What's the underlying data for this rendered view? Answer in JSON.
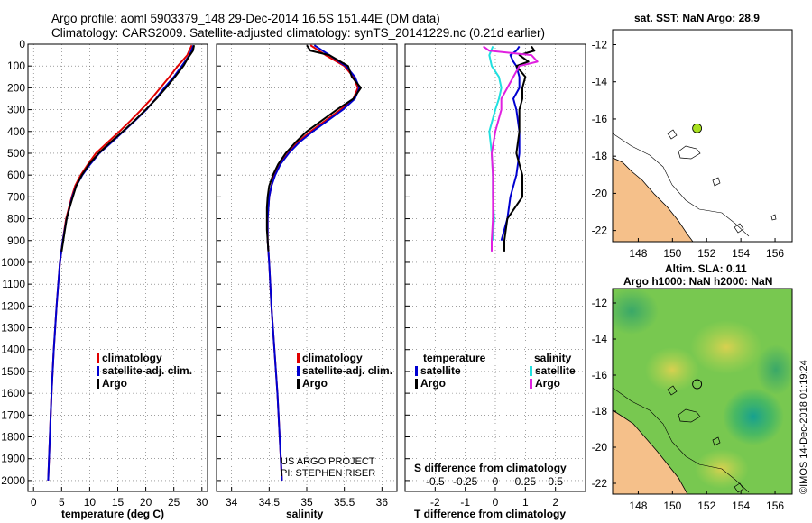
{
  "header": {
    "title_line1": "Argo profile: aoml 5903379_148 29-Dec-2014 16.5S 151.44E (DM data)",
    "title_line2": "Climatology: CARS2009. Satellite-adjusted climatology: synTS_20141229.nc (0.21d earlier)"
  },
  "colors": {
    "climatology": "#e00000",
    "satellite": "#0000d0",
    "argo": "#000000",
    "argo_salinity_diff": "#e020e0",
    "satellite_salinity_diff": "#20e0e0",
    "land": "#f5c08a"
  },
  "chart_data": [
    {
      "type": "line",
      "name": "temperature-profile",
      "xlabel": "temperature (deg C)",
      "ylabel": "",
      "xlim": [
        -1,
        31
      ],
      "ylim": [
        2050,
        0
      ],
      "xticks": [
        "0",
        "5",
        "10",
        "15",
        "20",
        "25",
        "30"
      ],
      "xtick_values": [
        0,
        5,
        10,
        15,
        20,
        25,
        30
      ],
      "yticks": [
        "0",
        "100",
        "200",
        "300",
        "400",
        "500",
        "600",
        "700",
        "800",
        "900",
        "1000",
        "1100",
        "1200",
        "1300",
        "1400",
        "1500",
        "1600",
        "1700",
        "1800",
        "1900",
        "2000"
      ],
      "ytick_values": [
        0,
        100,
        200,
        300,
        400,
        500,
        600,
        700,
        800,
        900,
        1000,
        1100,
        1200,
        1300,
        1400,
        1500,
        1600,
        1700,
        1800,
        1900,
        2000
      ],
      "legend": [
        "climatology",
        "satellite-adj. clim.",
        "Argo"
      ],
      "series": [
        {
          "name": "climatology",
          "depth": [
            5,
            50,
            100,
            150,
            200,
            250,
            300,
            350,
            400,
            450,
            500,
            550,
            600,
            650,
            700,
            750,
            800,
            900,
            1000,
            1200,
            1400,
            1600,
            1800,
            2000
          ],
          "values": [
            28.2,
            27.4,
            25.7,
            24.2,
            22.6,
            21.0,
            19.2,
            17.3,
            15.3,
            13.2,
            11.1,
            9.7,
            8.4,
            7.4,
            6.8,
            6.3,
            5.8,
            5.2,
            4.7,
            4.1,
            3.6,
            3.2,
            2.9,
            2.6
          ]
        },
        {
          "name": "satellite-adj. clim.",
          "depth": [
            5,
            50,
            100,
            150,
            200,
            250,
            300,
            350,
            400,
            450,
            500,
            550,
            600,
            650,
            700,
            750,
            800,
            900,
            1000,
            1200,
            1400,
            1600,
            1800,
            2000
          ],
          "values": [
            28.5,
            27.8,
            26.4,
            25.0,
            23.3,
            21.8,
            20.1,
            18.1,
            16.0,
            13.9,
            11.7,
            10.1,
            8.7,
            7.6,
            6.9,
            6.4,
            5.9,
            5.2,
            4.7,
            4.1,
            3.6,
            3.2,
            2.9,
            2.6
          ]
        },
        {
          "name": "Argo",
          "depth": [
            5,
            30,
            60,
            100,
            150,
            200,
            250,
            300,
            350,
            400,
            450,
            500,
            550,
            600,
            650,
            700,
            750,
            800,
            850,
            900,
            950
          ],
          "values": [
            28.6,
            28.4,
            27.6,
            26.7,
            25.2,
            23.6,
            21.9,
            20.0,
            18.0,
            15.9,
            13.7,
            11.6,
            9.9,
            8.6,
            7.6,
            7.0,
            6.4,
            5.9,
            5.6,
            5.3,
            5.0
          ]
        }
      ]
    },
    {
      "type": "line",
      "name": "salinity-profile",
      "xlabel": "salinity",
      "ylabel": "",
      "xlim": [
        33.8,
        36.2
      ],
      "ylim": [
        2050,
        0
      ],
      "xticks": [
        "34",
        "34.5",
        "35",
        "35.5",
        "36"
      ],
      "xtick_values": [
        34,
        34.5,
        35,
        35.5,
        36
      ],
      "legend": [
        "climatology",
        "satellite-adj. clim.",
        "Argo"
      ],
      "series": [
        {
          "name": "climatology",
          "depth": [
            5,
            50,
            100,
            150,
            200,
            250,
            300,
            350,
            400,
            450,
            500,
            550,
            600,
            650,
            700,
            800,
            900,
            1000,
            1200,
            1400,
            1600,
            1800,
            2000
          ],
          "values": [
            35.05,
            35.25,
            35.5,
            35.62,
            35.68,
            35.62,
            35.45,
            35.25,
            35.05,
            34.88,
            34.75,
            34.64,
            34.57,
            34.53,
            34.5,
            34.48,
            34.48,
            34.5,
            34.53,
            34.57,
            34.61,
            34.64,
            34.67
          ]
        },
        {
          "name": "satellite-adj. clim.",
          "depth": [
            5,
            50,
            100,
            150,
            200,
            250,
            300,
            350,
            400,
            450,
            500,
            550,
            600,
            650,
            700,
            800,
            900,
            1000,
            1200,
            1400,
            1600,
            1800,
            2000
          ],
          "values": [
            35.1,
            35.3,
            35.52,
            35.64,
            35.7,
            35.64,
            35.48,
            35.28,
            35.08,
            34.9,
            34.76,
            34.65,
            34.58,
            34.53,
            34.5,
            34.48,
            34.48,
            34.5,
            34.53,
            34.57,
            34.61,
            34.64,
            34.67
          ]
        },
        {
          "name": "Argo",
          "depth": [
            5,
            30,
            50,
            80,
            100,
            150,
            200,
            250,
            300,
            350,
            400,
            450,
            500,
            550,
            600,
            650,
            700,
            750,
            800,
            850,
            900,
            950
          ],
          "values": [
            35.0,
            35.05,
            35.3,
            35.45,
            35.55,
            35.6,
            35.72,
            35.62,
            35.4,
            35.2,
            35.0,
            34.85,
            34.72,
            34.62,
            34.55,
            34.5,
            34.48,
            34.47,
            34.47,
            34.47,
            34.48,
            34.49
          ]
        }
      ]
    },
    {
      "type": "line",
      "name": "difference-from-climatology",
      "xlabel": "T difference from climatology",
      "x2label": "S difference from climatology",
      "xlim": [
        -3,
        3
      ],
      "ylim": [
        2050,
        0
      ],
      "xticks": [
        "-2",
        "-1",
        "0",
        "1",
        "2"
      ],
      "xtick_values": [
        -2,
        -1,
        0,
        1,
        2
      ],
      "x2ticks": [
        "-0.5",
        "-0.25",
        "0",
        "0.25",
        "0.5"
      ],
      "x2tick_values": [
        -0.5,
        -0.25,
        0,
        0.25,
        0.5
      ],
      "legend_title_left": "temperature",
      "legend_title_right": "salinity",
      "legend_left": [
        "satellite",
        "Argo"
      ],
      "legend_right": [
        "satellite",
        "Argo"
      ],
      "series": [
        {
          "name": "T satellite",
          "depth": [
            10,
            30,
            50,
            80,
            100,
            150,
            200,
            250,
            300,
            400,
            500,
            600,
            700,
            800,
            900
          ],
          "values": [
            0.8,
            0.7,
            0.5,
            0.6,
            0.7,
            0.8,
            0.8,
            0.6,
            0.7,
            0.8,
            0.8,
            0.7,
            0.5,
            0.4,
            0.2
          ]
        },
        {
          "name": "T Argo",
          "depth": [
            10,
            30,
            50,
            80,
            100,
            150,
            200,
            250,
            300,
            400,
            500,
            600,
            700,
            800,
            900,
            950
          ],
          "values": [
            1.2,
            1.3,
            0.8,
            1.1,
            0.7,
            1.0,
            0.9,
            0.9,
            0.8,
            0.8,
            0.7,
            0.9,
            0.9,
            0.4,
            0.3,
            0.3
          ]
        },
        {
          "name": "S satellite",
          "depth": [
            10,
            50,
            100,
            150,
            200,
            250,
            300,
            400,
            500,
            600,
            700,
            800,
            900
          ],
          "values": [
            -0.02,
            -0.05,
            -0.03,
            0.03,
            0.05,
            0.03,
            0.0,
            -0.05,
            -0.03,
            -0.02,
            -0.02,
            -0.01,
            -0.02
          ]
        },
        {
          "name": "S Argo",
          "depth": [
            10,
            30,
            50,
            80,
            100,
            150,
            200,
            250,
            300,
            400,
            500,
            600,
            700,
            800,
            900,
            950
          ],
          "values": [
            -0.1,
            -0.05,
            0.3,
            0.35,
            0.2,
            0.15,
            0.1,
            0.05,
            0.05,
            0.0,
            -0.03,
            -0.02,
            -0.02,
            -0.02,
            -0.03,
            -0.03
          ]
        }
      ]
    },
    {
      "type": "scatter",
      "name": "sst-map",
      "title": "sat. SST: NaN Argo: 28.9",
      "xlim": [
        146.5,
        157
      ],
      "ylim": [
        -22.6,
        -11.2
      ],
      "xticks": [
        "148",
        "150",
        "152",
        "154",
        "156"
      ],
      "xtick_values": [
        148,
        150,
        152,
        154,
        156
      ],
      "yticks": [
        "-12",
        "-14",
        "-16",
        "-18",
        "-20",
        "-22"
      ],
      "ytick_values": [
        -12,
        -14,
        -16,
        -18,
        -20,
        -22
      ],
      "points": [
        {
          "lon": 151.44,
          "lat": -16.5
        }
      ]
    },
    {
      "type": "heatmap",
      "name": "sla-map",
      "title_line1": "Altim. SLA: 0.11",
      "title_line2": "Argo h1000: NaN h2000: NaN",
      "xlim": [
        146.5,
        157
      ],
      "ylim": [
        -22.6,
        -11.2
      ],
      "xticks": [
        "148",
        "150",
        "152",
        "154",
        "156"
      ],
      "xtick_values": [
        148,
        150,
        152,
        154,
        156
      ],
      "yticks": [
        "-12",
        "-14",
        "-16",
        "-18",
        "-20",
        "-22"
      ],
      "ytick_values": [
        -12,
        -14,
        -16,
        -18,
        -20,
        -22
      ],
      "points": [
        {
          "lon": 151.44,
          "lat": -16.5
        }
      ]
    }
  ],
  "credits": {
    "line1": "US ARGO PROJECT",
    "line2": "PI: STEPHEN RISER"
  },
  "watermark": "©IMOS 14-Dec-2018 01:19:24"
}
